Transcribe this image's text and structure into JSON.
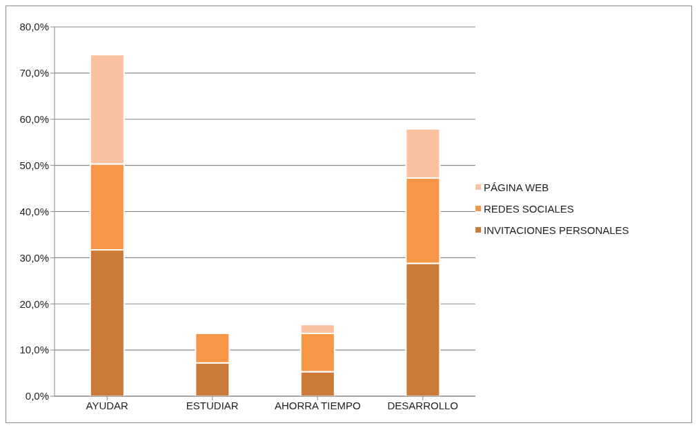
{
  "chart_data": {
    "type": "bar",
    "stacked": true,
    "categories": [
      "AYUDAR",
      "ESTUDIAR",
      "AHORRA TIEMPO",
      "DESARROLLO"
    ],
    "series": [
      {
        "name": "INVITACIONES PERSONALES",
        "color": "#cc7a37",
        "values": [
          31.7,
          7.2,
          5.3,
          28.8
        ]
      },
      {
        "name": "REDES SOCIALES",
        "color": "#f79646",
        "values": [
          18.6,
          6.4,
          8.3,
          18.5
        ]
      },
      {
        "name": "PÁGINA WEB",
        "color": "#fac2a0",
        "values": [
          23.7,
          null,
          1.9,
          10.6
        ]
      }
    ],
    "ylim": [
      0,
      80
    ],
    "yticks": [
      {
        "value": 0,
        "label": "0,0%"
      },
      {
        "value": 10,
        "label": "10,0%"
      },
      {
        "value": 20,
        "label": "20,0%"
      },
      {
        "value": 30,
        "label": "30,0%"
      },
      {
        "value": 40,
        "label": "40,0%"
      },
      {
        "value": 50,
        "label": "50,0%"
      },
      {
        "value": 60,
        "label": "60,0%"
      },
      {
        "value": 70,
        "label": "70,0%"
      },
      {
        "value": 80,
        "label": "80,0%"
      }
    ],
    "grid": "y",
    "legend": "right"
  }
}
